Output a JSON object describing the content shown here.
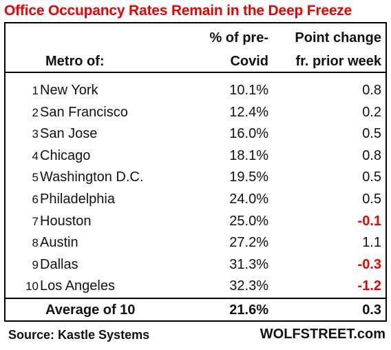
{
  "colors": {
    "title": "#ee0000",
    "negative": "#ee0000",
    "text": "#111111",
    "border": "#000000"
  },
  "chart_data": {
    "type": "table",
    "title": "Office Occupancy Rates Remain in the Deep Freeze",
    "columns": [
      {
        "line1": "",
        "line2": "Metro of:"
      },
      {
        "line1": "% of pre-",
        "line2": "Covid"
      },
      {
        "line1": "Point change",
        "line2": "fr. prior week"
      }
    ],
    "rows": [
      {
        "rank": "1",
        "metro": "New York",
        "pct": "10.1%",
        "change": "0.8"
      },
      {
        "rank": "2",
        "metro": "San Francisco",
        "pct": "12.4%",
        "change": "0.2"
      },
      {
        "rank": "3",
        "metro": "San Jose",
        "pct": "16.0%",
        "change": "0.5"
      },
      {
        "rank": "4",
        "metro": "Chicago",
        "pct": "18.1%",
        "change": "0.8"
      },
      {
        "rank": "5",
        "metro": "Washington D.C.",
        "pct": "19.5%",
        "change": "0.5"
      },
      {
        "rank": "6",
        "metro": "Philadelphia",
        "pct": "24.0%",
        "change": "0.5"
      },
      {
        "rank": "7",
        "metro": "Houston",
        "pct": "25.0%",
        "change": "-0.1"
      },
      {
        "rank": "8",
        "metro": "Austin",
        "pct": "27.2%",
        "change": "1.1"
      },
      {
        "rank": "9",
        "metro": "Dallas",
        "pct": "31.3%",
        "change": "-0.3"
      },
      {
        "rank": "10",
        "metro": "Los Angeles",
        "pct": "32.3%",
        "change": "-1.2"
      }
    ],
    "average": {
      "label": "Average of 10",
      "pct": "21.6%",
      "change": "0.3"
    },
    "source": "Source: Kastle Systems",
    "brand": "WOLFSTREET.com"
  }
}
